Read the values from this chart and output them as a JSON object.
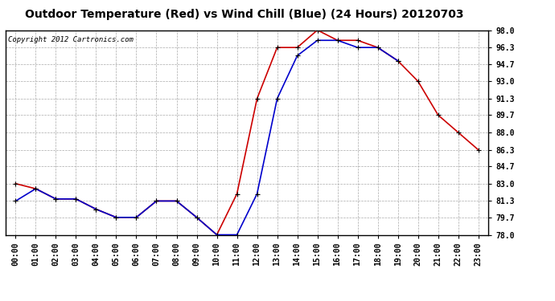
{
  "title": "Outdoor Temperature (Red) vs Wind Chill (Blue) (24 Hours) 20120703",
  "copyright_text": "Copyright 2012 Cartronics.com",
  "hours": [
    0,
    1,
    2,
    3,
    4,
    5,
    6,
    7,
    8,
    9,
    10,
    11,
    12,
    13,
    14,
    15,
    16,
    17,
    18,
    19,
    20,
    21,
    22,
    23
  ],
  "temp_red": [
    83.0,
    82.5,
    81.5,
    81.5,
    80.5,
    79.7,
    79.7,
    81.3,
    81.3,
    79.7,
    78.0,
    82.0,
    91.3,
    96.3,
    96.3,
    98.0,
    97.0,
    97.0,
    96.3,
    95.0,
    93.0,
    89.7,
    88.0,
    86.3
  ],
  "wind_blue": [
    81.3,
    82.5,
    81.5,
    81.5,
    80.5,
    79.7,
    79.7,
    81.3,
    81.3,
    79.7,
    78.0,
    78.0,
    82.0,
    91.3,
    95.5,
    97.0,
    97.0,
    96.3,
    96.3,
    95.0,
    null,
    null,
    null,
    null
  ],
  "ylim_min": 78.0,
  "ylim_max": 98.0,
  "yticks": [
    78.0,
    79.7,
    81.3,
    83.0,
    84.7,
    86.3,
    88.0,
    89.7,
    91.3,
    93.0,
    94.7,
    96.3,
    98.0
  ],
  "red_color": "#cc0000",
  "blue_color": "#0000cc",
  "bg_color": "#ffffff",
  "plot_bg_color": "#ffffff",
  "grid_color": "#aaaaaa",
  "title_fontsize": 10,
  "copyright_fontsize": 6.5,
  "tick_fontsize": 7
}
